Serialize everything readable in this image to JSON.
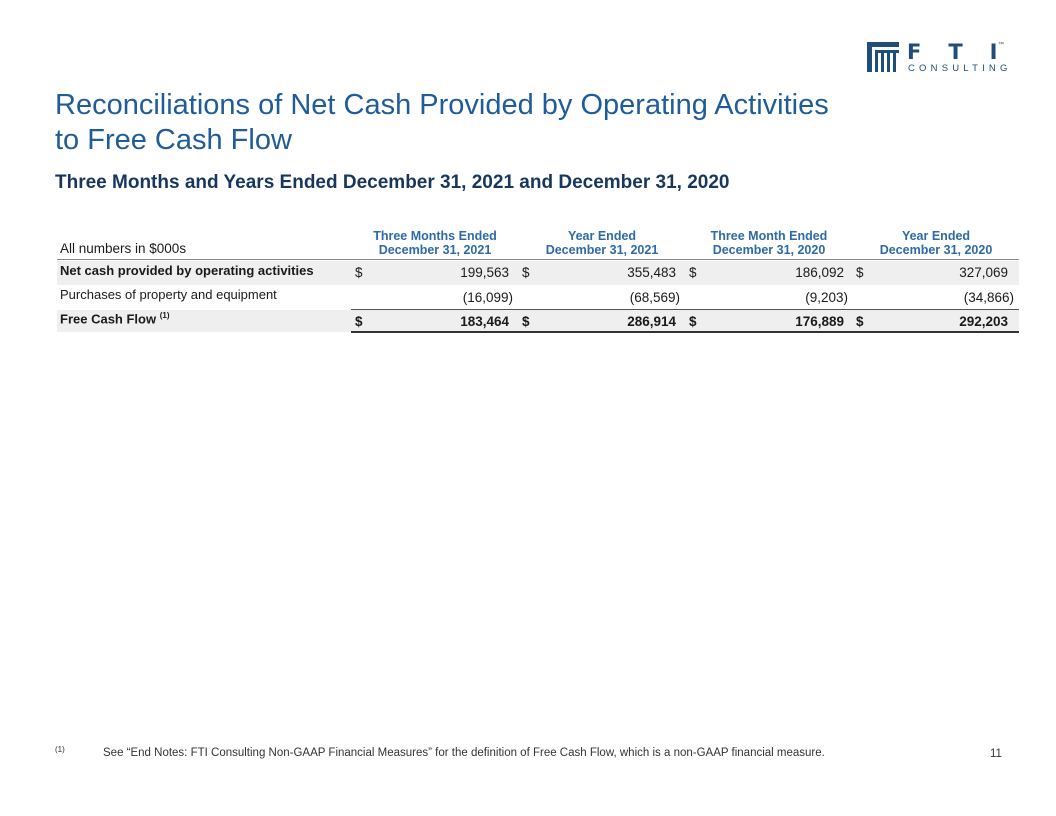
{
  "logo": {
    "wordmark": "FTI",
    "tagline": "CONSULTING",
    "trademark": "™",
    "brand_color": "#1e4e79"
  },
  "title": {
    "line1": "Reconciliations of Net Cash Provided by Operating Activities",
    "line2": "to Free Cash Flow"
  },
  "subtitle": "Three Months and Years Ended December 31, 2021 and December 31, 2020",
  "table": {
    "units_label": "All numbers in $000s",
    "columns": [
      {
        "line1": "Three Months Ended",
        "line2": "December 31, 2021"
      },
      {
        "line1": "Year Ended",
        "line2": "December 31, 2021"
      },
      {
        "line1": "Three Month Ended",
        "line2": "December 31, 2020"
      },
      {
        "line1": "Year Ended",
        "line2": "December 31, 2020"
      }
    ],
    "rows": [
      {
        "label": "Net cash provided by operating activities",
        "currency": "$",
        "values": [
          "199,563",
          "355,483",
          "186,092",
          "327,069"
        ]
      },
      {
        "label": "Purchases of property and equipment",
        "currency": "",
        "values": [
          "(16,099)",
          "(68,569)",
          "(9,203)",
          "(34,866)"
        ]
      },
      {
        "label": "Free Cash Flow",
        "label_sup": "(1)",
        "currency": "$",
        "values": [
          "183,464",
          "286,914",
          "176,889",
          "292,203"
        ]
      }
    ]
  },
  "footnote": {
    "mark": "(1)",
    "text": "See “End Notes: FTI Consulting Non-GAAP Financial Measures” for the definition of Free Cash Flow, which is a non-GAAP financial measure."
  },
  "page_number": "11",
  "colors": {
    "title": "#1f5c99",
    "subtitle": "#17375e",
    "column_header": "#2e6aa6",
    "row_shade": "#efefef"
  }
}
